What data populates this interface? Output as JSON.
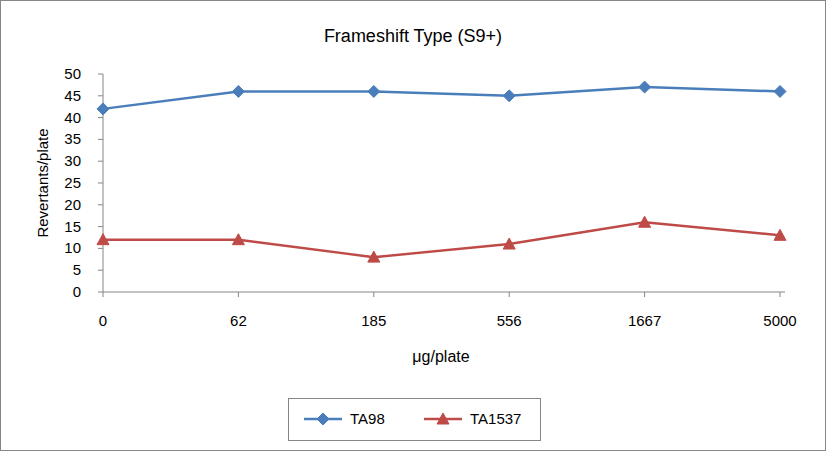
{
  "chart_data": {
    "type": "line",
    "title": "Frameshift Type (S9+)",
    "x_label": "μg/plate",
    "y_label": "Revertants/plate",
    "categories": [
      "0",
      "62",
      "185",
      "556",
      "1667",
      "5000"
    ],
    "series": [
      {
        "name": "TA98",
        "color": "#4a7ebb",
        "marker": "diamond",
        "line_style": "solid",
        "values": [
          42,
          46,
          46,
          45,
          47,
          46
        ]
      },
      {
        "name": "TA1537",
        "color": "#be4b48",
        "marker": "triangle",
        "line_style": "solid",
        "values": [
          12,
          12,
          8,
          11,
          16,
          13
        ]
      }
    ],
    "ylim": [
      0,
      50
    ],
    "yticks": [
      0,
      5,
      10,
      15,
      20,
      25,
      30,
      35,
      40,
      45,
      50
    ],
    "grid": false,
    "legend": "bottom"
  }
}
